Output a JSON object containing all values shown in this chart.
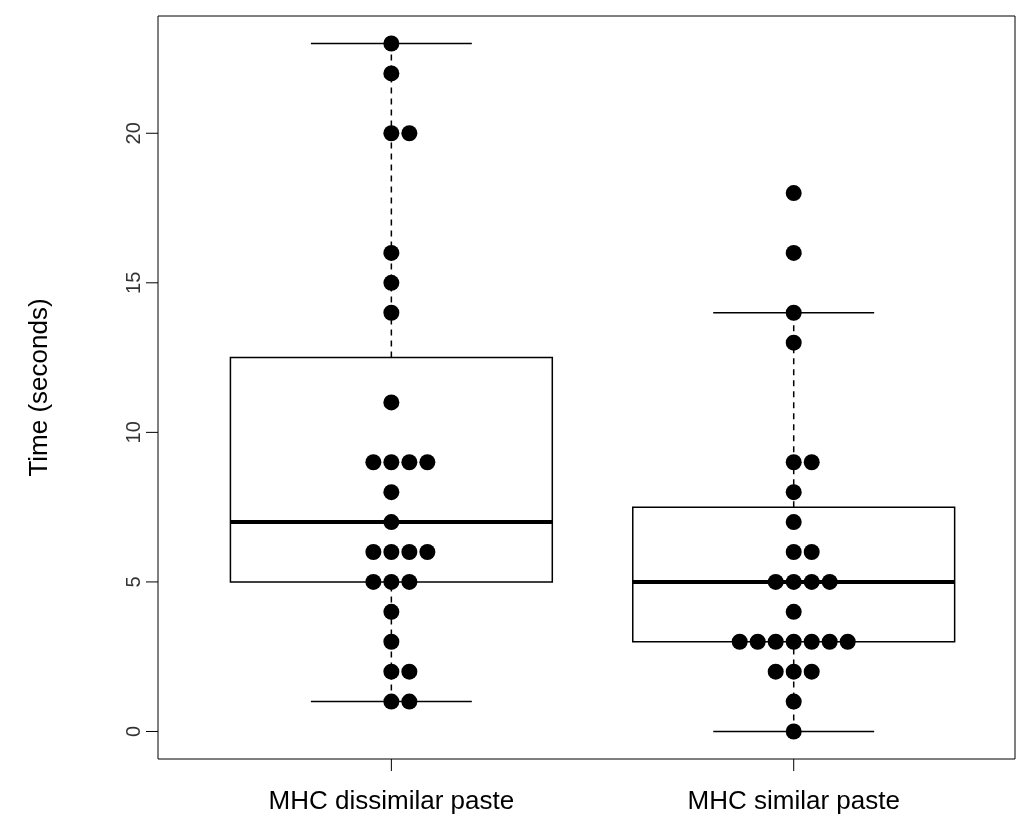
{
  "chart_data": {
    "type": "box",
    "ylabel": "Time (seconds)",
    "categories": [
      "MHC dissimilar paste",
      "MHC similar paste"
    ],
    "boxes": [
      {
        "low": 1,
        "q1": 5,
        "median": 7,
        "q3": 12.5,
        "high": 23
      },
      {
        "low": 0,
        "q1": 3,
        "median": 5,
        "q3": 7.5,
        "high": 14
      }
    ],
    "ylim": [
      -0.92,
      23.92
    ],
    "yticks": [
      0,
      5,
      10,
      15,
      20
    ],
    "grid": false,
    "legend": false,
    "series": [
      {
        "type": "scatter",
        "color": "#000000",
        "marker": "circle",
        "x": [
          "MHC dissimilar paste",
          "MHC dissimilar paste",
          "MHC dissimilar paste",
          "MHC dissimilar paste",
          "MHC dissimilar paste",
          "MHC dissimilar paste",
          "MHC dissimilar paste",
          "MHC dissimilar paste",
          "MHC dissimilar paste",
          "MHC dissimilar paste",
          "MHC dissimilar paste",
          "MHC dissimilar paste",
          "MHC dissimilar paste",
          "MHC dissimilar paste",
          "MHC dissimilar paste",
          "MHC dissimilar paste",
          "MHC dissimilar paste",
          "MHC dissimilar paste",
          "MHC dissimilar paste",
          "MHC dissimilar paste",
          "MHC dissimilar paste",
          "MHC dissimilar paste",
          "MHC dissimilar paste",
          "MHC dissimilar paste",
          "MHC dissimilar paste",
          "MHC dissimilar paste",
          "MHC dissimilar paste"
        ],
        "values": [
          23,
          22,
          20,
          20,
          16,
          15,
          14,
          11,
          9,
          9,
          9,
          9,
          8,
          7,
          6,
          6,
          6,
          6,
          5,
          5,
          5,
          4,
          3,
          2,
          2,
          1,
          1
        ]
      },
      {
        "type": "scatter",
        "color": "#000000",
        "marker": "circle",
        "x": [
          "MHC similar paste",
          "MHC similar paste",
          "MHC similar paste",
          "MHC similar paste",
          "MHC similar paste",
          "MHC similar paste",
          "MHC similar paste",
          "MHC similar paste",
          "MHC similar paste",
          "MHC similar paste",
          "MHC similar paste",
          "MHC similar paste",
          "MHC similar paste",
          "MHC similar paste",
          "MHC similar paste",
          "MHC similar paste",
          "MHC similar paste",
          "MHC similar paste",
          "MHC similar paste",
          "MHC similar paste",
          "MHC similar paste",
          "MHC similar paste",
          "MHC similar paste",
          "MHC similar paste",
          "MHC similar paste",
          "MHC similar paste",
          "MHC similar paste"
        ],
        "values": [
          18,
          16,
          14,
          13,
          9,
          9,
          8,
          7,
          6,
          6,
          5,
          5,
          5,
          5,
          4,
          3,
          3,
          3,
          3,
          3,
          3,
          3,
          2,
          2,
          2,
          1,
          0
        ]
      }
    ]
  }
}
